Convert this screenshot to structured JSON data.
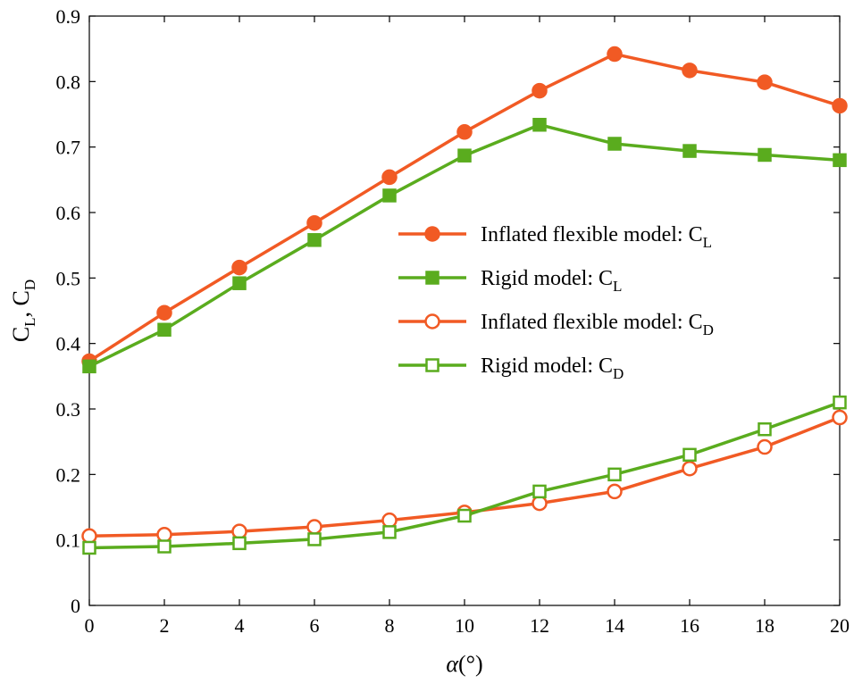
{
  "chart_data": {
    "type": "line",
    "xlabel_symbol": "α",
    "xlabel_unit": "(°)",
    "ylabel_parts": [
      "C",
      "L",
      ", ",
      "C",
      "D"
    ],
    "xlim": [
      0,
      20
    ],
    "ylim": [
      0,
      0.9
    ],
    "xticks": [
      0,
      2,
      4,
      6,
      8,
      10,
      12,
      14,
      16,
      18,
      20
    ],
    "yticks": [
      0,
      0.1,
      0.2,
      0.3,
      0.4,
      0.5,
      0.6,
      0.7,
      0.8,
      0.9
    ],
    "xtick_labels": [
      "0",
      "2",
      "4",
      "6",
      "8",
      "10",
      "12",
      "14",
      "16",
      "18",
      "20"
    ],
    "ytick_labels": [
      "0",
      "0.1",
      "0.2",
      "0.3",
      "0.4",
      "0.5",
      "0.6",
      "0.7",
      "0.8",
      "0.9"
    ],
    "grid": false,
    "legend_position": "center-right",
    "x": [
      0,
      2,
      4,
      6,
      8,
      10,
      12,
      14,
      16,
      18,
      20
    ],
    "series": [
      {
        "name": "Inflated flexible model: C",
        "subscript": "L",
        "color": "#f15a24",
        "marker": "circle",
        "filled": true,
        "values": [
          0.373,
          0.447,
          0.516,
          0.584,
          0.654,
          0.723,
          0.786,
          0.842,
          0.817,
          0.799,
          0.763
        ]
      },
      {
        "name": "Rigid model: C",
        "subscript": "L",
        "color": "#5aac1e",
        "marker": "square",
        "filled": true,
        "values": [
          0.365,
          0.421,
          0.492,
          0.558,
          0.626,
          0.687,
          0.734,
          0.705,
          0.694,
          0.688,
          0.68
        ]
      },
      {
        "name": "Inflated flexible model: C",
        "subscript": "D",
        "color": "#f15a24",
        "marker": "circle",
        "filled": false,
        "values": [
          0.106,
          0.108,
          0.113,
          0.12,
          0.13,
          0.142,
          0.156,
          0.174,
          0.209,
          0.242,
          0.287
        ]
      },
      {
        "name": "Rigid model: C",
        "subscript": "D",
        "color": "#5aac1e",
        "marker": "square",
        "filled": false,
        "values": [
          0.088,
          0.09,
          0.095,
          0.101,
          0.112,
          0.137,
          0.174,
          0.2,
          0.23,
          0.269,
          0.31
        ]
      }
    ]
  }
}
